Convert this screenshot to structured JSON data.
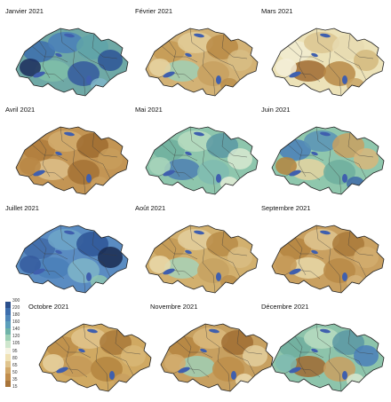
{
  "months": [
    {
      "label": "Janvier 2021",
      "base": "#6fa9a6",
      "patches": [
        "#3d6ead",
        "#4a7fb8",
        "#5fa3a8",
        "#2e5597",
        "#80bfa8",
        "#355b9e",
        "#1c2d5c",
        "#7fb5c8"
      ]
    },
    {
      "label": "Février 2021",
      "base": "#d3b275",
      "patches": [
        "#c49a55",
        "#e2cc99",
        "#b88a45",
        "#d7bd85",
        "#9fcfb5",
        "#c7a060",
        "#e6d4a2",
        "#bb8f4c"
      ]
    },
    {
      "label": "Mars 2021",
      "base": "#ece2b8",
      "patches": [
        "#f2ecd0",
        "#dcc690",
        "#e8dbb0",
        "#d4b87d",
        "#a06a30",
        "#b98947",
        "#f4efd8",
        "#c9a465"
      ]
    },
    {
      "label": "Avril 2021",
      "base": "#c39554",
      "patches": [
        "#b07c3c",
        "#d2ad6e",
        "#9f6c30",
        "#c89d5c",
        "#ddc08a",
        "#a57235",
        "#b88745",
        "#caa060"
      ]
    },
    {
      "label": "Mai 2021",
      "base": "#8ec6ad",
      "patches": [
        "#6faf9d",
        "#b9dcc0",
        "#5a98a3",
        "#d8e9d0",
        "#4d7fb2",
        "#7fbbb0",
        "#a8d4bb",
        "#e3ecd6"
      ]
    },
    {
      "label": "Juin 2021",
      "base": "#8fc7ad",
      "patches": [
        "#4a7fb8",
        "#5b93b6",
        "#c9a060",
        "#d8b67a",
        "#e5d3a0",
        "#6fae9e",
        "#b48540",
        "#3f6aa8"
      ]
    },
    {
      "label": "Juillet 2021",
      "base": "#5a8cc2",
      "patches": [
        "#3f6aa8",
        "#6fa6c8",
        "#2e5597",
        "#1a2a50",
        "#4a7fb8",
        "#7fb5c8",
        "#355b9e",
        "#8ec6b2"
      ]
    },
    {
      "label": "Août 2021",
      "base": "#d2b06e",
      "patches": [
        "#c49a55",
        "#e3cf9d",
        "#b98c48",
        "#d9bd84",
        "#a7d2b8",
        "#c7a262",
        "#ead9aa",
        "#bb8f4c"
      ]
    },
    {
      "label": "Septembre 2021",
      "base": "#c9a060",
      "patches": [
        "#b58541",
        "#dec48f",
        "#a9793a",
        "#d2ad6e",
        "#e8d8a8",
        "#b98947",
        "#c59a58",
        "#d6b47a"
      ]
    },
    {
      "label": "Octobre 2021",
      "base": "#d0a962",
      "patches": [
        "#bd8e4a",
        "#e0c48d",
        "#a9793a",
        "#d8b777",
        "#c59a58",
        "#b48540",
        "#e6d1a0",
        "#c9a060"
      ]
    },
    {
      "label": "Novembre 2021",
      "base": "#c7a060",
      "patches": [
        "#b58541",
        "#d9b97c",
        "#a06d32",
        "#e3cf9d",
        "#9fcfb5",
        "#bd8e4a",
        "#d2ad6e",
        "#ecdcb0"
      ]
    },
    {
      "label": "Décembre 2021",
      "base": "#8dc4ab",
      "patches": [
        "#6fae9e",
        "#b7dcc0",
        "#5a98a3",
        "#4a7fb8",
        "#a06a30",
        "#c9a060",
        "#7fbbb0",
        "#d8e9d0"
      ]
    }
  ],
  "legend": {
    "values": [
      "300",
      "220",
      "180",
      "160",
      "140",
      "120",
      "105",
      "95",
      "80",
      "65",
      "50",
      "35",
      "15"
    ],
    "colors": [
      "#2b4f8c",
      "#3d6ead",
      "#4f86b9",
      "#5c9fbb",
      "#6fb3a8",
      "#9dd0b5",
      "#cfe6cd",
      "#f5f3e2",
      "#f0e2b5",
      "#e0c48d",
      "#d2a868",
      "#c18d4c",
      "#a8743a"
    ]
  }
}
